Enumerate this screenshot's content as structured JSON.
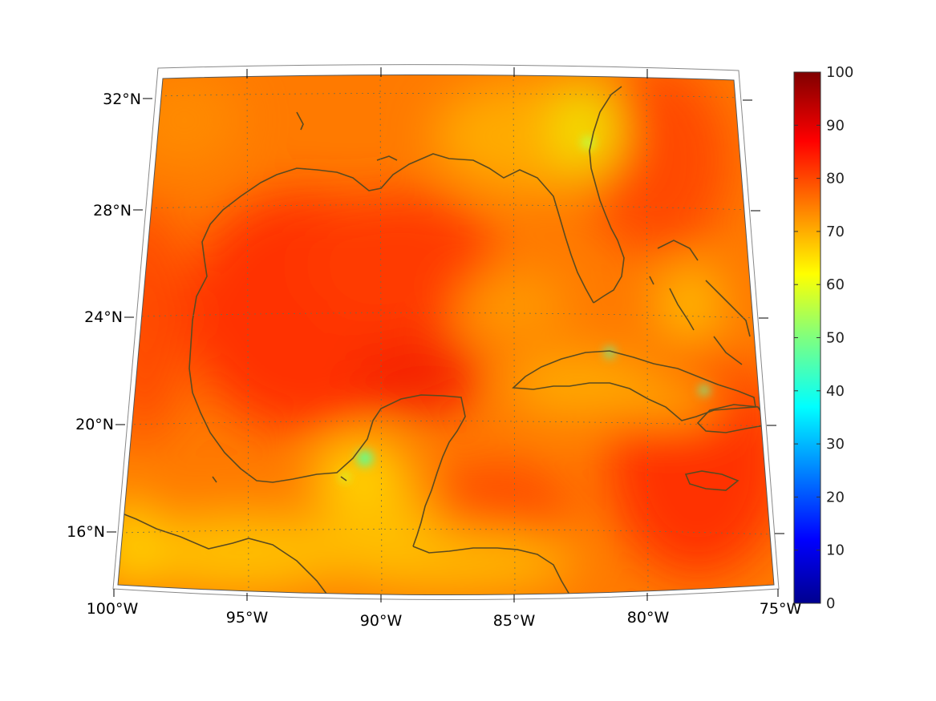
{
  "map": {
    "projection": "conic",
    "region": "Gulf of Mexico and Caribbean",
    "lon_range": [
      -100,
      -75
    ],
    "lat_range": [
      14,
      33
    ],
    "field_colormap": "jet",
    "coastline_color": "#5a4a20",
    "lat_labels": [
      "32°N",
      "28°N",
      "24°N",
      "20°N",
      "16°N"
    ],
    "lon_labels": [
      "100°W",
      "95°W",
      "90°W",
      "85°W",
      "80°W",
      "75°W"
    ]
  },
  "colorbar": {
    "min": 0,
    "max": 100,
    "ticks": [
      "100",
      "90",
      "80",
      "70",
      "60",
      "50",
      "40",
      "30",
      "20",
      "10",
      "0"
    ]
  }
}
